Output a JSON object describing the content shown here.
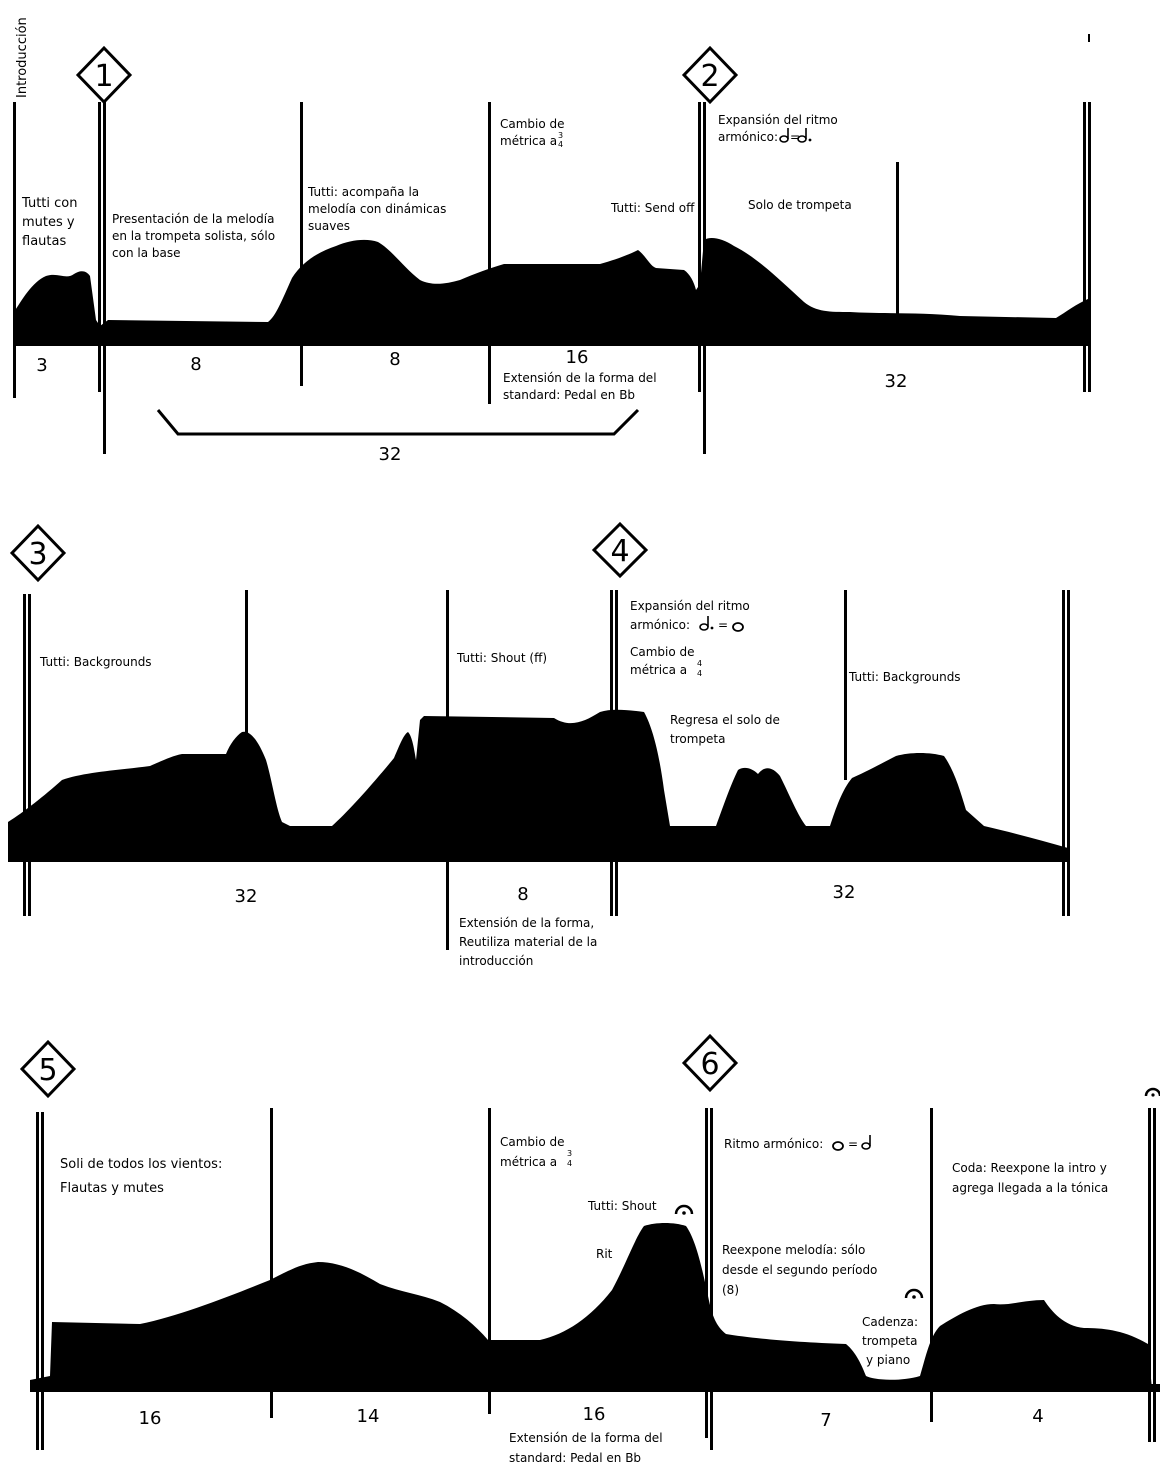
{
  "intro_label": "Introducción",
  "rehearsal_marks": [
    "1",
    "2",
    "3",
    "4",
    "5",
    "6"
  ],
  "colors": {
    "ink": "#000000",
    "paper": "#ffffff"
  },
  "row1": {
    "labels": {
      "tutti_mutes_1": "Tutti con",
      "tutti_mutes_2": "mutes y",
      "tutti_mutes_3": "flautas",
      "presentacion_1": "Presentación de la melodía",
      "presentacion_2": "en la trompeta solista, sólo",
      "presentacion_3": "con la base",
      "acompana_1": "Tutti: acompaña la",
      "acompana_2": "melodía con dinámicas",
      "acompana_3": "suaves",
      "cambio_1": "Cambio de",
      "cambio_2": "métrica a",
      "meter_top": "3",
      "meter_bottom": "4",
      "send_off": "Tutti: Send off",
      "expansion_1": "Expansión del ritmo",
      "expansion_2": "armónico:",
      "expansion_eq": "=",
      "solo_trompeta": "Solo de trompeta",
      "extension_1": "Extensión de la forma del",
      "extension_2": "standard: Pedal en Bb"
    },
    "measures": [
      "3",
      "8",
      "8",
      "16",
      "32"
    ],
    "bracket_total": "32"
  },
  "row2": {
    "labels": {
      "backgrounds_a": "Tutti: Backgrounds",
      "shout_ff": "Tutti: Shout (ff)",
      "expansion_1": "Expansión del ritmo",
      "expansion_2": "armónico:",
      "expansion_eq": "=",
      "cambio_1": "Cambio de",
      "cambio_2": "métrica a",
      "meter_top": "4",
      "meter_bottom": "4",
      "regresa_1": "Regresa el solo de",
      "regresa_2": "trompeta",
      "backgrounds_b": "Tutti: Backgrounds",
      "extension_1": "Extensión de la forma,",
      "extension_2": "Reutiliza material de la",
      "extension_3": "introducción"
    },
    "measures": [
      "32",
      "8",
      "32"
    ]
  },
  "row3": {
    "labels": {
      "soli_1": "Soli de todos los vientos:",
      "soli_2": "Flautas y mutes",
      "cambio_1": "Cambio de",
      "cambio_2": "métrica a",
      "meter_top": "3",
      "meter_bottom": "4",
      "shout": "Tutti: Shout",
      "rit": "Rit",
      "ritmo": "Ritmo armónico:",
      "ritmo_eq": "=",
      "reexpone_1": "Reexpone melodía: sólo",
      "reexpone_2": "desde el segundo período",
      "reexpone_3": "(8)",
      "cadenza_1": "Cadenza:",
      "cadenza_2": "trompeta",
      "cadenza_3": "y piano",
      "coda_1": "Coda: Reexpone la intro y",
      "coda_2": "agrega llegada a la tónica",
      "extension_1": "Extensión de la forma del",
      "extension_2": "standard: Pedal en Bb"
    },
    "measures": [
      "16",
      "14",
      "16",
      "7",
      "4"
    ]
  }
}
